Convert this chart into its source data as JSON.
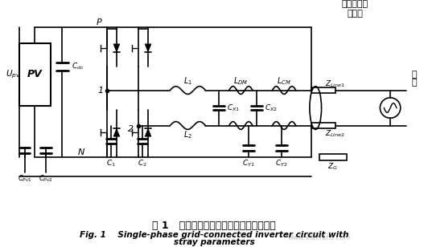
{
  "title_cn": "图 1   考虑寄生参数的单相并网逆变器电路",
  "title_en_line1": "Fig. 1    Single-phase grid-connected inverter circuit with",
  "title_en_line2": "stray parameters",
  "bg_color": "#ffffff",
  "circuit_color": "#000000",
  "watermark_text": "www.elecfans.com",
  "leakage_label_cn": "漏电流电流\n测试点",
  "grid_label_cn": "电\n网",
  "upv_label": "U_pv",
  "pv_label": "PV",
  "cdc_label": "C_dc",
  "cpv1_label": "C_Pv1",
  "cpv2_label": "C_Pv2",
  "p_label": "P",
  "n_label": "N",
  "c1_label": "C_1",
  "c2_label": "C_2",
  "l1_label": "L_1",
  "l2_label": "L_2",
  "ldm_label": "L_DM",
  "lcm_label": "L_CM",
  "cx1_label": "C_X1",
  "cx2_label": "C_X2",
  "cy1_label": "C_Y1",
  "cy2_label": "C_Y2",
  "zline1_label": "Z_Line1",
  "zline2_label": "Z_Line2",
  "zg_label": "Z_G",
  "fig_width": 5.32,
  "fig_height": 3.08,
  "dpi": 100
}
